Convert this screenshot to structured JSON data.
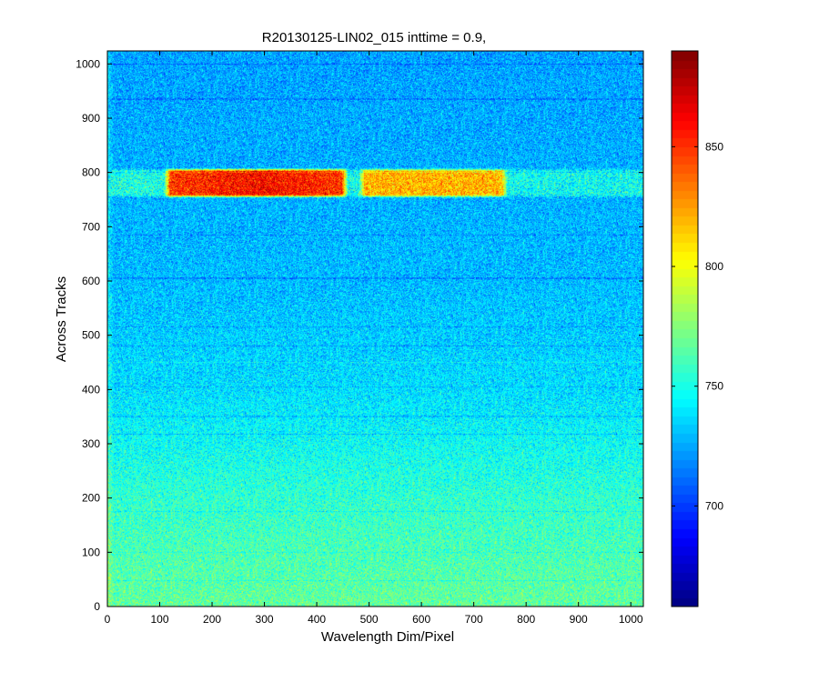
{
  "chart_data": {
    "type": "heatmap",
    "title": "R20130125-LIN02_015 inttime = 0.9,",
    "xlabel": "Wavelength Dim/Pixel",
    "ylabel": "Across Tracks",
    "xlim": [
      0,
      1024
    ],
    "ylim": [
      0,
      1024
    ],
    "x_ticks": [
      0,
      100,
      200,
      300,
      400,
      500,
      600,
      700,
      800,
      900,
      1000
    ],
    "y_ticks": [
      0,
      100,
      200,
      300,
      400,
      500,
      600,
      700,
      800,
      900,
      1000
    ],
    "colormap": "jet",
    "color_range": [
      658,
      890
    ],
    "colorbar_ticks": [
      700,
      750,
      800,
      850
    ],
    "background_gradient": [
      {
        "y": 0,
        "value": 768
      },
      {
        "y": 200,
        "value": 756
      },
      {
        "y": 400,
        "value": 738
      },
      {
        "y": 600,
        "value": 730
      },
      {
        "y": 1024,
        "value": 724
      }
    ],
    "left_edge_boost": {
      "x_max": 12,
      "value": 14
    },
    "bright_band": {
      "y_range": [
        753,
        808
      ],
      "edge_value": 748,
      "segments": [
        {
          "x_range": [
            0,
            108
          ],
          "value": 752
        },
        {
          "x_range": [
            108,
            460
          ],
          "value": 848,
          "peak_x": 290,
          "peak_value": 860
        },
        {
          "x_range": [
            480,
            765
          ],
          "value": 820
        }
      ]
    },
    "horizontal_streaks": [
      {
        "y": 1000,
        "delta": -14
      },
      {
        "y": 935,
        "delta": -10
      },
      {
        "y": 800,
        "delta": -12
      },
      {
        "y": 685,
        "delta": -10
      },
      {
        "y": 605,
        "delta": -12
      },
      {
        "y": 515,
        "delta": -10
      },
      {
        "y": 480,
        "delta": -12
      },
      {
        "y": 450,
        "delta": 8
      },
      {
        "y": 405,
        "delta": -8
      },
      {
        "y": 350,
        "delta": -10
      },
      {
        "y": 318,
        "delta": -14
      },
      {
        "y": 175,
        "delta": -10
      },
      {
        "y": 100,
        "delta": -8
      },
      {
        "y": 48,
        "delta": -10
      }
    ]
  }
}
